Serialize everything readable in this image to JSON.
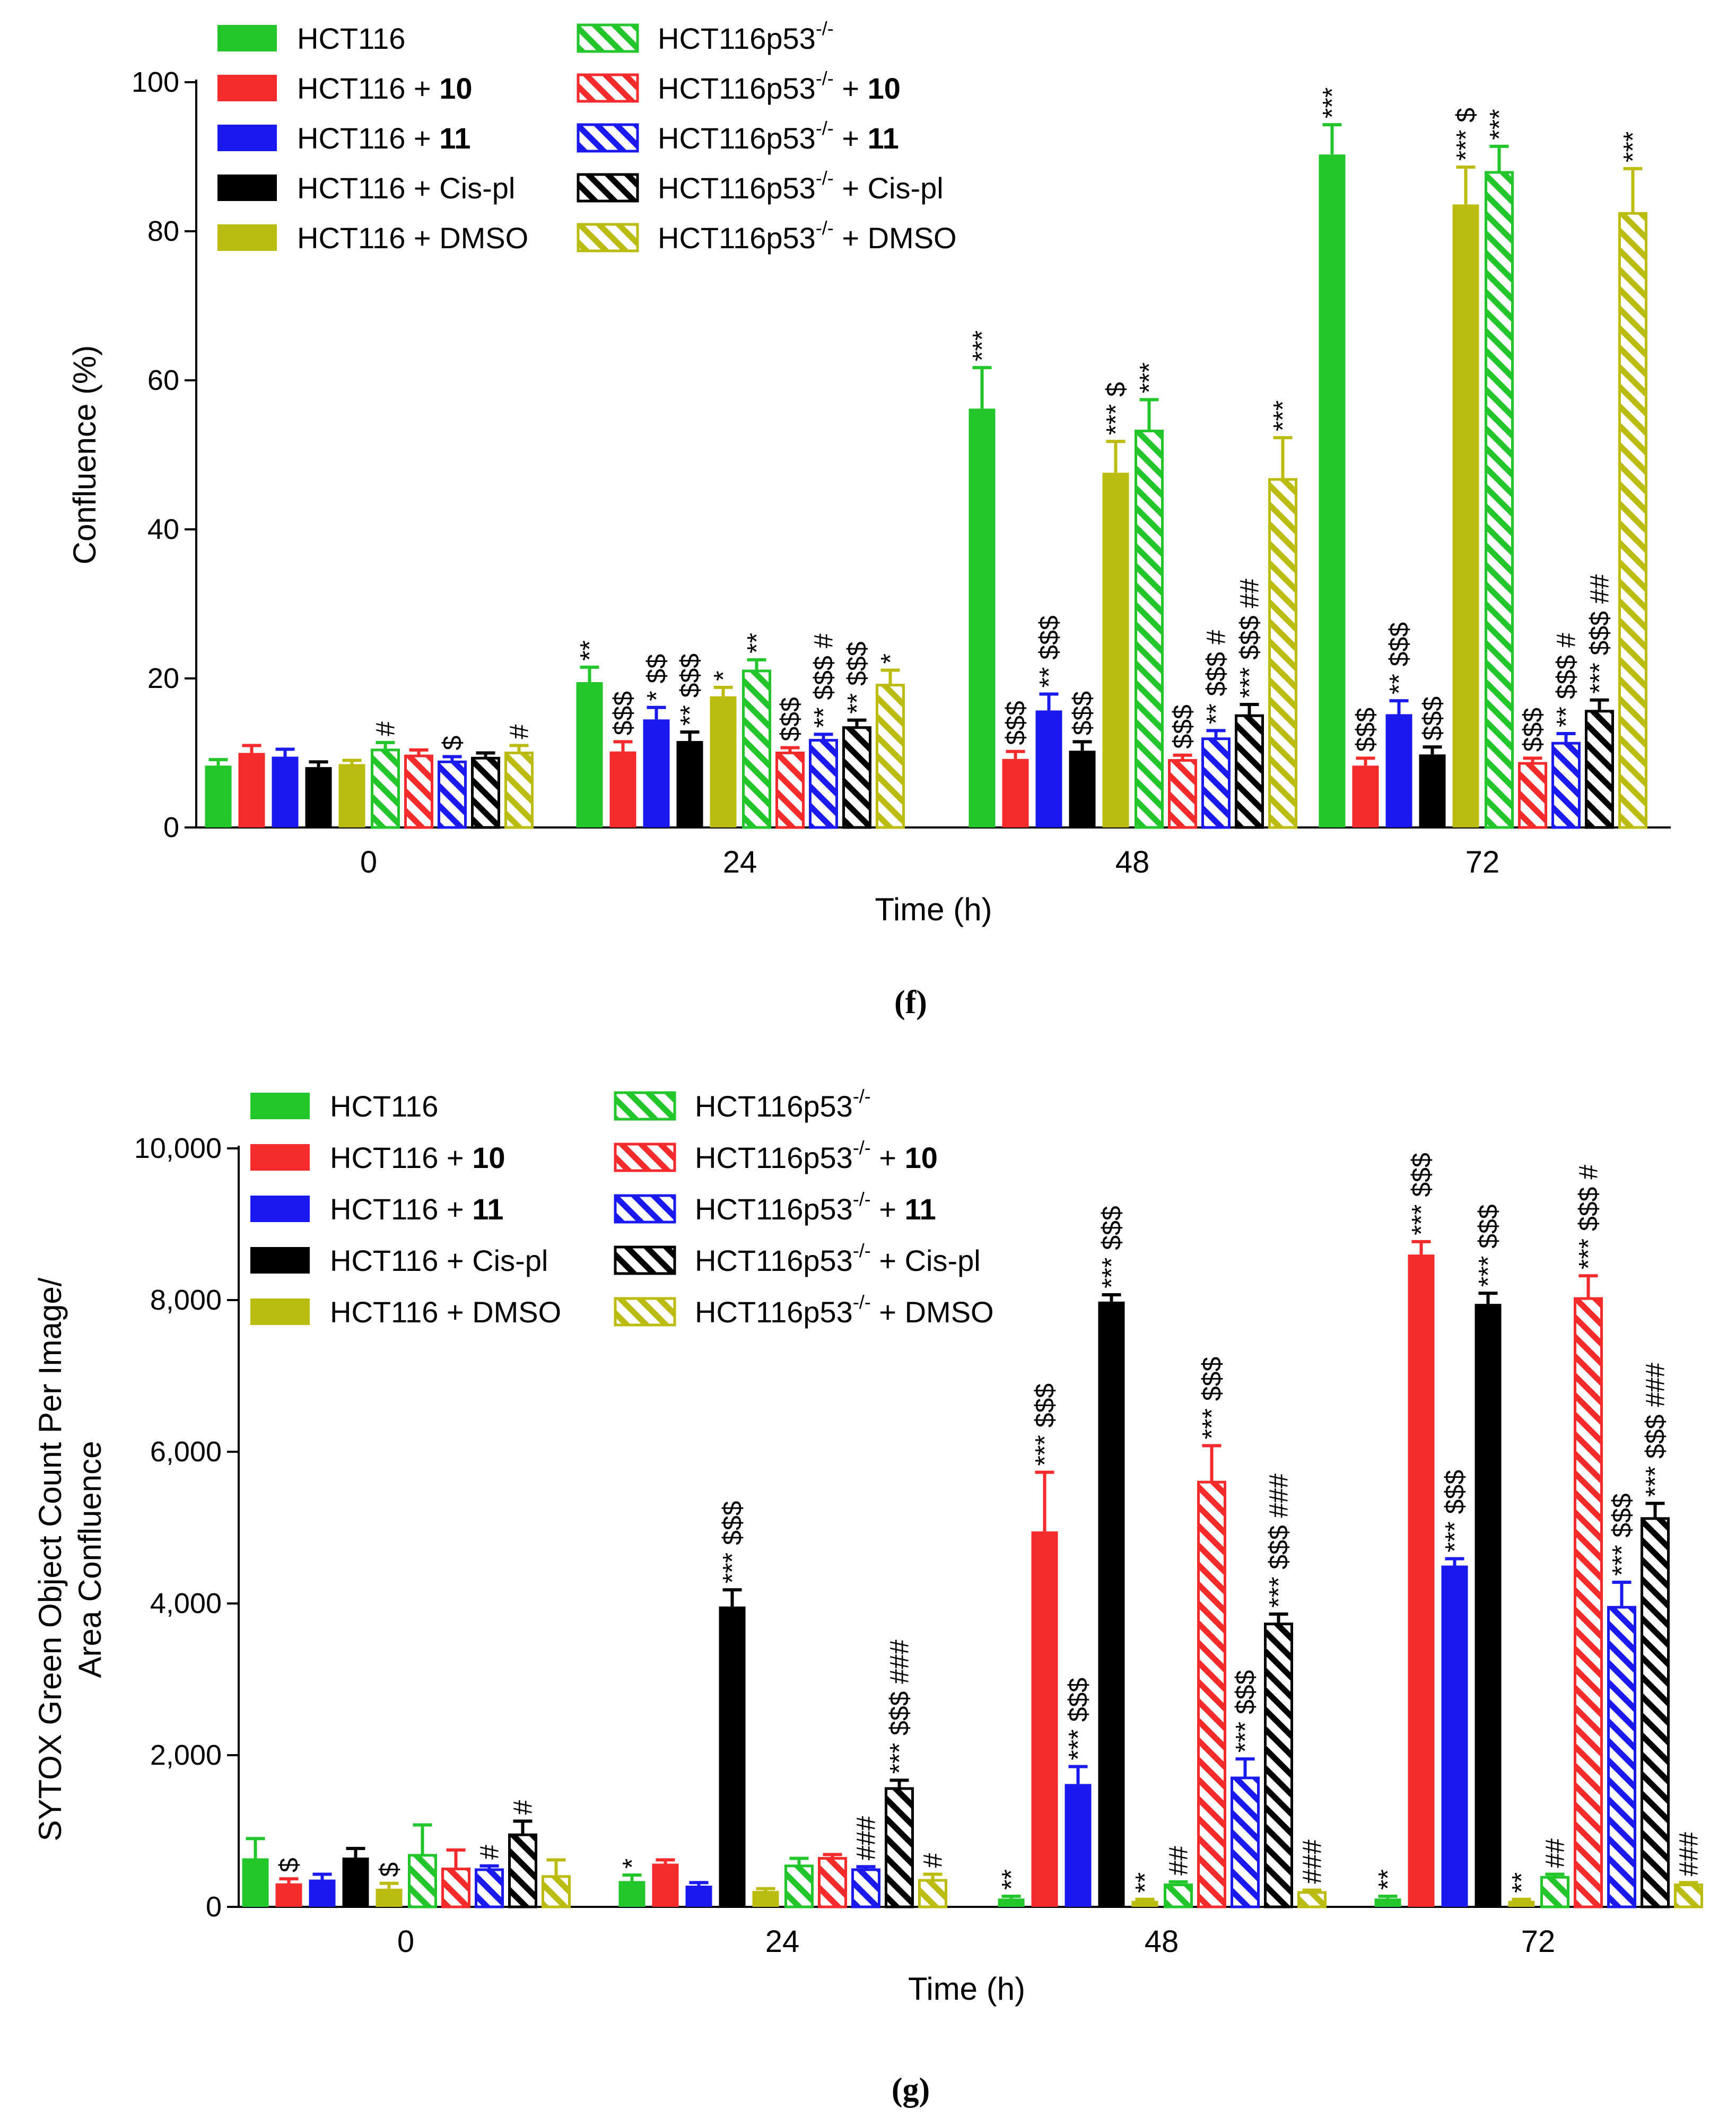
{
  "colors": {
    "green": "#22c52a",
    "red": "#f52a2a",
    "blue": "#1a1aee",
    "black": "#000000",
    "olive": "#bbbb10"
  },
  "panels": [
    {
      "label": "(f)"
    },
    {
      "label": "(g)"
    }
  ],
  "chart_data": [
    {
      "type": "bar",
      "title": "",
      "xlabel": "Time (h)",
      "ylabel": "Confluence (%)",
      "ylim": [
        0,
        100
      ],
      "yticks": [
        "0",
        "20",
        "40",
        "60",
        "80",
        "100"
      ],
      "categories": [
        "0",
        "24",
        "48",
        "72"
      ],
      "legend_position": "top-left",
      "series": [
        {
          "name": "HCT116",
          "name_main": "HCT116",
          "name_bold": "",
          "name_sup": "",
          "name_suffix": "",
          "color": "green",
          "pattern": "solid",
          "values": [
            8.3,
            19.5,
            56.2,
            90.3
          ],
          "errors": [
            0.8,
            2.0,
            5.5,
            4.0
          ],
          "annotations": [
            "",
            "**",
            "***",
            "***"
          ]
        },
        {
          "name": "HCT116 + 10",
          "name_main": "HCT116 + ",
          "name_bold": "10",
          "name_sup": "",
          "name_suffix": "",
          "color": "red",
          "pattern": "solid",
          "values": [
            10.0,
            10.2,
            9.2,
            8.3
          ],
          "errors": [
            1.0,
            1.3,
            1.0,
            1.0
          ],
          "annotations": [
            "",
            "$$$",
            "$$$",
            "$$$"
          ]
        },
        {
          "name": "HCT116 + 11",
          "name_main": "HCT116 + ",
          "name_bold": "11",
          "name_sup": "",
          "name_suffix": "",
          "color": "blue",
          "pattern": "solid",
          "values": [
            9.5,
            14.5,
            15.7,
            15.2
          ],
          "errors": [
            1.0,
            1.6,
            2.2,
            1.8
          ],
          "annotations": [
            "",
            "* $$",
            "** $$$",
            "** $$$"
          ]
        },
        {
          "name": "HCT116 + Cis-pl",
          "name_main": "HCT116 + Cis-pl",
          "name_bold": "",
          "name_sup": "",
          "name_suffix": "",
          "color": "black",
          "pattern": "solid",
          "values": [
            8.1,
            11.6,
            10.3,
            9.8
          ],
          "errors": [
            0.7,
            1.2,
            1.2,
            1.0
          ],
          "annotations": [
            "",
            "** $$$",
            "$$$",
            "$$$"
          ]
        },
        {
          "name": "HCT116 + DMSO",
          "name_main": "HCT116 + DMSO",
          "name_bold": "",
          "name_sup": "",
          "name_suffix": "",
          "color": "olive",
          "pattern": "solid",
          "values": [
            8.5,
            17.6,
            47.6,
            83.6
          ],
          "errors": [
            0.5,
            1.2,
            4.2,
            5.0
          ],
          "annotations": [
            "",
            "*",
            "*** $",
            "*** $"
          ]
        },
        {
          "name": "HCT116p53-/-",
          "name_main": "HCT116p53",
          "name_bold": "",
          "name_sup": "-/-",
          "name_suffix": "",
          "color": "green",
          "pattern": "hatch",
          "values": [
            10.4,
            21.0,
            53.2,
            87.9
          ],
          "errors": [
            1.0,
            1.5,
            4.2,
            3.5
          ],
          "annotations": [
            "#",
            "**",
            "***",
            "***"
          ]
        },
        {
          "name": "HCT116p53-/- + 10",
          "name_main": "HCT116p53",
          "name_bold": "10",
          "name_sup": "-/-",
          "name_suffix": " + ",
          "color": "red",
          "pattern": "hatch",
          "values": [
            9.6,
            10.0,
            9.0,
            8.6
          ],
          "errors": [
            0.8,
            0.7,
            0.7,
            0.7
          ],
          "annotations": [
            "",
            "$$$",
            "$$$",
            "$$$"
          ]
        },
        {
          "name": "HCT116p53-/- + 11",
          "name_main": "HCT116p53",
          "name_bold": "11",
          "name_sup": "-/-",
          "name_suffix": " + ",
          "color": "blue",
          "pattern": "hatch",
          "values": [
            8.8,
            11.7,
            11.9,
            11.3
          ],
          "errors": [
            0.7,
            0.8,
            1.1,
            1.3
          ],
          "annotations": [
            "$",
            "** $$$ #",
            "** $$$ #",
            "** $$$ #"
          ]
        },
        {
          "name": "HCT116p53-/- + Cis-pl",
          "name_main": "HCT116p53",
          "name_bold": "",
          "name_sup": "-/-",
          "name_suffix": " + Cis-pl",
          "color": "black",
          "pattern": "hatch",
          "values": [
            9.3,
            13.4,
            15.0,
            15.6
          ],
          "errors": [
            0.7,
            1.0,
            1.5,
            1.5
          ],
          "annotations": [
            "",
            "** $$$",
            "*** $$$ ##",
            "*** $$$ ##"
          ]
        },
        {
          "name": "HCT116p53-/- + DMSO",
          "name_main": "HCT116p53",
          "name_bold": "",
          "name_sup": "-/-",
          "name_suffix": " + DMSO",
          "color": "olive",
          "pattern": "hatch",
          "values": [
            10.0,
            19.1,
            46.7,
            82.4
          ],
          "errors": [
            1.0,
            2.0,
            5.6,
            6.0
          ],
          "annotations": [
            "#",
            "*",
            "***",
            "***"
          ]
        }
      ]
    },
    {
      "type": "bar",
      "title": "",
      "xlabel": "Time (h)",
      "ylabel": "SYTOX Green Object Count Per Image/",
      "ylabel2": "Area Confluence",
      "ylim": [
        0,
        10000
      ],
      "yticks": [
        "0",
        "2,000",
        "4,000",
        "6,000",
        "8,000",
        "10,000"
      ],
      "categories": [
        "0",
        "24",
        "48",
        "72"
      ],
      "legend_position": "top-left",
      "series": [
        {
          "name": "HCT116",
          "name_main": "HCT116",
          "name_bold": "",
          "name_sup": "",
          "name_suffix": "",
          "color": "green",
          "pattern": "solid",
          "values": [
            640,
            340,
            110,
            110
          ],
          "errors": [
            260,
            80,
            30,
            30
          ],
          "annotations": [
            "",
            "*",
            "**",
            "**"
          ]
        },
        {
          "name": "HCT116 + 10",
          "name_main": "HCT116 + ",
          "name_bold": "10",
          "name_sup": "",
          "name_suffix": "",
          "color": "red",
          "pattern": "solid",
          "values": [
            310,
            570,
            4950,
            8600
          ],
          "errors": [
            60,
            50,
            780,
            170
          ],
          "annotations": [
            "$",
            "",
            "*** $$$",
            "*** $$$"
          ]
        },
        {
          "name": "HCT116 + 11",
          "name_main": "HCT116 + ",
          "name_bold": "11",
          "name_sup": "",
          "name_suffix": "",
          "color": "blue",
          "pattern": "solid",
          "values": [
            360,
            280,
            1620,
            4500
          ],
          "errors": [
            70,
            40,
            230,
            90
          ],
          "annotations": [
            "",
            "",
            "*** $$$",
            "*** $$$"
          ]
        },
        {
          "name": "HCT116 + Cis-pl",
          "name_main": "HCT116 + Cis-pl",
          "name_bold": "",
          "name_sup": "",
          "name_suffix": "",
          "color": "black",
          "pattern": "solid",
          "values": [
            650,
            3960,
            7980,
            7950
          ],
          "errors": [
            120,
            220,
            90,
            140
          ],
          "annotations": [
            "",
            "*** $$$",
            "*** $$$",
            "*** $$$"
          ]
        },
        {
          "name": "HCT116 + DMSO",
          "name_main": "HCT116 + DMSO",
          "name_bold": "",
          "name_sup": "",
          "name_suffix": "",
          "color": "olive",
          "pattern": "solid",
          "values": [
            240,
            210,
            80,
            80
          ],
          "errors": [
            70,
            30,
            20,
            20
          ],
          "annotations": [
            "$",
            "",
            "**",
            "**"
          ]
        },
        {
          "name": "HCT116p53-/-",
          "name_main": "HCT116p53",
          "name_bold": "",
          "name_sup": "-/-",
          "name_suffix": "",
          "color": "green",
          "pattern": "hatch",
          "values": [
            680,
            540,
            290,
            390
          ],
          "errors": [
            400,
            100,
            40,
            40
          ],
          "annotations": [
            "",
            "",
            "##",
            "##"
          ]
        },
        {
          "name": "HCT116p53-/- + 10",
          "name_main": "HCT116p53",
          "name_bold": "10",
          "name_sup": "-/-",
          "name_suffix": " + ",
          "color": "red",
          "pattern": "hatch",
          "values": [
            500,
            640,
            5600,
            8020
          ],
          "errors": [
            250,
            50,
            480,
            300
          ],
          "annotations": [
            "",
            "",
            "*** $$$",
            "*** $$$ #"
          ]
        },
        {
          "name": "HCT116p53-/- + 11",
          "name_main": "HCT116p53",
          "name_bold": "11",
          "name_sup": "-/-",
          "name_suffix": " + ",
          "color": "blue",
          "pattern": "hatch",
          "values": [
            490,
            490,
            1700,
            3950
          ],
          "errors": [
            50,
            40,
            250,
            330
          ],
          "annotations": [
            "#",
            "###",
            "*** $$$",
            "*** $$$"
          ]
        },
        {
          "name": "HCT116p53-/- + Cis-pl",
          "name_main": "HCT116p53",
          "name_bold": "",
          "name_sup": "-/-",
          "name_suffix": " + Cis-pl",
          "color": "black",
          "pattern": "hatch",
          "values": [
            950,
            1560,
            3730,
            5120
          ],
          "errors": [
            180,
            110,
            130,
            200
          ],
          "annotations": [
            "#",
            "*** $$$ ###",
            "*** $$$ ###",
            "*** $$$ ###"
          ]
        },
        {
          "name": "HCT116p53-/- + DMSO",
          "name_main": "HCT116p53",
          "name_bold": "",
          "name_sup": "-/-",
          "name_suffix": " + DMSO",
          "color": "olive",
          "pattern": "hatch",
          "values": [
            400,
            350,
            190,
            290
          ],
          "errors": [
            220,
            80,
            30,
            30
          ],
          "annotations": [
            "",
            "#",
            "###",
            "###"
          ]
        }
      ]
    }
  ]
}
